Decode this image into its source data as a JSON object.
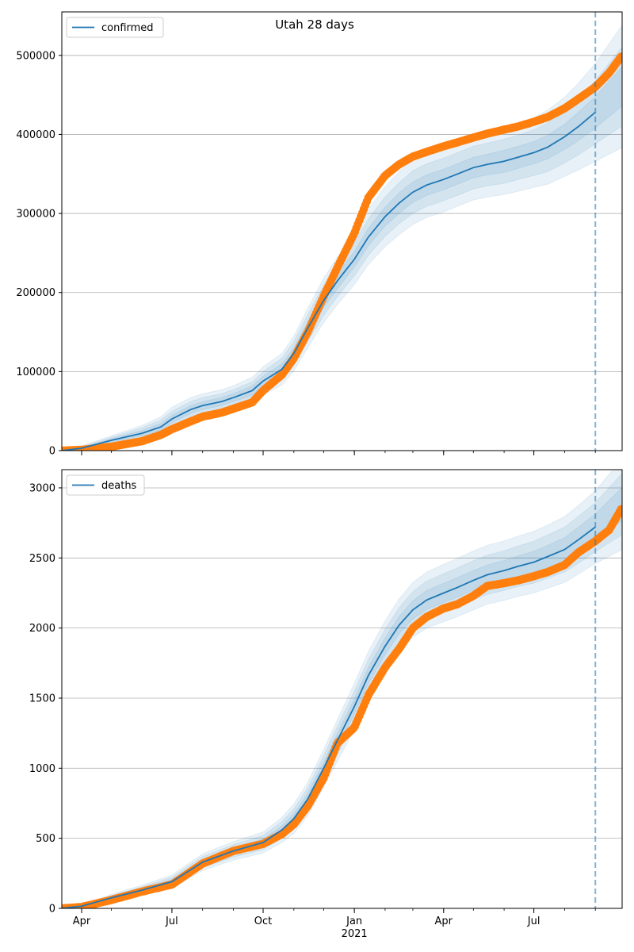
{
  "title": "Utah 28 days",
  "colors": {
    "model": "#1f77b4",
    "observed": "#ff7f0e",
    "band": "#1f77b4",
    "grid": "#b0b0b0",
    "cutoff": "#1f77b4"
  },
  "chart_data": [
    {
      "type": "line",
      "legend": "confirmed",
      "legend_loc": "upper-left",
      "grid": "y",
      "x_range": [
        "2020-03-12",
        "2021-09-28"
      ],
      "ylim": [
        0,
        555000
      ],
      "y_ticks": [
        0,
        100000,
        200000,
        300000,
        400000,
        500000
      ],
      "y_tick_labels": [
        "0",
        "100000",
        "200000",
        "300000",
        "400000",
        "500000"
      ],
      "x_ticks": [
        "2020-04-01",
        "2020-07-01",
        "2020-10-01",
        "2021-01-01",
        "2021-04-01",
        "2021-07-01"
      ],
      "x_tick_labels": [
        "Apr",
        "Jul",
        "Oct",
        "Jan",
        "Apr",
        "Jul"
      ],
      "forecast_start": "2021-09-01",
      "model": {
        "x": [
          "2020-03-12",
          "2020-04-01",
          "2020-05-01",
          "2020-06-01",
          "2020-06-20",
          "2020-07-01",
          "2020-07-20",
          "2020-08-01",
          "2020-08-20",
          "2020-09-01",
          "2020-09-20",
          "2020-10-01",
          "2020-10-20",
          "2020-11-01",
          "2020-11-15",
          "2020-12-01",
          "2020-12-15",
          "2021-01-01",
          "2021-01-15",
          "2021-02-01",
          "2021-02-15",
          "2021-03-01",
          "2021-03-15",
          "2021-04-01",
          "2021-04-15",
          "2021-05-01",
          "2021-05-15",
          "2021-06-01",
          "2021-06-15",
          "2021-07-01",
          "2021-07-15",
          "2021-08-01",
          "2021-08-15",
          "2021-09-01"
        ],
        "y": [
          0,
          3000,
          13000,
          22000,
          30000,
          40000,
          52000,
          57000,
          62000,
          67000,
          76000,
          88000,
          103000,
          123000,
          155000,
          190000,
          215000,
          242000,
          270000,
          296000,
          313000,
          327000,
          336000,
          343000,
          350000,
          358000,
          362000,
          366000,
          371000,
          377000,
          384000,
          397000,
          410000,
          428000
        ]
      },
      "band_widths": [
        [
          0,
          1000,
          2000,
          3500,
          4500,
          5000,
          5000,
          5000,
          5000,
          5000,
          6000,
          6000,
          7000,
          7000,
          8000,
          9000,
          10000,
          10000,
          11000,
          12000,
          13000,
          13000,
          13000,
          13000,
          13000,
          13000,
          13000,
          14000,
          14000,
          14000,
          15000,
          16000,
          18000,
          20000
        ],
        [
          0,
          2000,
          4000,
          7000,
          9000,
          10000,
          10000,
          10000,
          10000,
          10000,
          11000,
          12000,
          14000,
          15000,
          17000,
          19000,
          20000,
          21000,
          23000,
          25000,
          26000,
          27000,
          27000,
          27000,
          27000,
          27000,
          27000,
          28000,
          28000,
          29000,
          31000,
          33000,
          36000,
          40000
        ],
        [
          0,
          3000,
          6000,
          10000,
          13000,
          15000,
          15000,
          15000,
          15000,
          15000,
          17000,
          18000,
          20000,
          22000,
          25000,
          28000,
          30000,
          32000,
          35000,
          38000,
          40000,
          41000,
          41000,
          41000,
          41000,
          41000,
          41000,
          42000,
          43000,
          44000,
          47000,
          50000,
          55000,
          62000
        ]
      ],
      "observed": {
        "x": [
          "2020-03-12",
          "2020-04-01",
          "2020-05-01",
          "2020-06-01",
          "2020-06-20",
          "2020-07-01",
          "2020-07-20",
          "2020-08-01",
          "2020-08-20",
          "2020-09-01",
          "2020-09-20",
          "2020-10-01",
          "2020-10-20",
          "2020-11-01",
          "2020-11-15",
          "2020-12-01",
          "2020-12-15",
          "2021-01-01",
          "2021-01-15",
          "2021-02-01",
          "2021-02-15",
          "2021-03-01",
          "2021-03-15",
          "2021-04-01",
          "2021-04-15",
          "2021-05-01",
          "2021-05-15",
          "2021-06-01",
          "2021-06-15",
          "2021-07-01",
          "2021-07-15",
          "2021-08-01",
          "2021-08-15",
          "2021-09-01",
          "2021-09-15",
          "2021-09-28"
        ],
        "y": [
          0,
          1000,
          5000,
          12000,
          20000,
          27000,
          37000,
          43000,
          48000,
          53000,
          61000,
          76000,
          96000,
          117000,
          150000,
          195000,
          232000,
          275000,
          320000,
          348000,
          362000,
          372000,
          378000,
          385000,
          390000,
          396000,
          401000,
          406000,
          410000,
          416000,
          422000,
          433000,
          445000,
          460000,
          478000,
          500000
        ]
      }
    },
    {
      "type": "line",
      "legend": "deaths",
      "legend_loc": "upper-left",
      "grid": "y",
      "x_range": [
        "2020-03-12",
        "2021-09-28"
      ],
      "ylim": [
        0,
        3130
      ],
      "y_ticks": [
        0,
        500,
        1000,
        1500,
        2000,
        2500,
        3000
      ],
      "y_tick_labels": [
        "0",
        "500",
        "1000",
        "1500",
        "2000",
        "2500",
        "3000"
      ],
      "x_ticks": [
        "2020-04-01",
        "2020-07-01",
        "2020-10-01",
        "2021-01-01",
        "2021-04-01",
        "2021-07-01"
      ],
      "x_tick_labels": [
        "Apr",
        "Jul",
        "Oct",
        "Jan",
        "Apr",
        "Jul"
      ],
      "year_label": "2021",
      "forecast_start": "2021-09-01",
      "model": {
        "x": [
          "2020-03-12",
          "2020-04-01",
          "2020-05-01",
          "2020-06-01",
          "2020-07-01",
          "2020-08-01",
          "2020-09-01",
          "2020-10-01",
          "2020-10-20",
          "2020-11-01",
          "2020-11-15",
          "2020-12-01",
          "2020-12-15",
          "2021-01-01",
          "2021-01-15",
          "2021-02-01",
          "2021-02-15",
          "2021-03-01",
          "2021-03-15",
          "2021-04-01",
          "2021-04-15",
          "2021-05-01",
          "2021-05-15",
          "2021-06-01",
          "2021-06-15",
          "2021-07-01",
          "2021-07-15",
          "2021-08-01",
          "2021-08-15",
          "2021-09-01"
        ],
        "y": [
          0,
          15,
          75,
          130,
          190,
          330,
          410,
          470,
          560,
          640,
          780,
          1000,
          1200,
          1440,
          1660,
          1870,
          2020,
          2130,
          2200,
          2250,
          2290,
          2340,
          2380,
          2410,
          2440,
          2470,
          2510,
          2560,
          2630,
          2720
        ]
      },
      "band_widths": [
        [
          0,
          3,
          8,
          12,
          16,
          20,
          22,
          25,
          30,
          35,
          40,
          45,
          50,
          55,
          58,
          60,
          62,
          65,
          68,
          70,
          70,
          70,
          70,
          72,
          75,
          78,
          80,
          85,
          90,
          95
        ],
        [
          0,
          6,
          16,
          24,
          32,
          40,
          44,
          50,
          60,
          70,
          80,
          90,
          100,
          110,
          115,
          120,
          125,
          130,
          135,
          138,
          140,
          140,
          140,
          142,
          145,
          150,
          155,
          160,
          168,
          175
        ],
        [
          0,
          10,
          25,
          36,
          48,
          60,
          66,
          75,
          90,
          105,
          120,
          135,
          150,
          165,
          172,
          180,
          188,
          195,
          200,
          205,
          208,
          210,
          210,
          212,
          215,
          220,
          225,
          235,
          245,
          260
        ]
      ],
      "observed": {
        "x": [
          "2020-03-12",
          "2020-04-01",
          "2020-05-01",
          "2020-06-01",
          "2020-07-01",
          "2020-08-01",
          "2020-09-01",
          "2020-10-01",
          "2020-10-20",
          "2020-11-01",
          "2020-11-15",
          "2020-12-01",
          "2020-12-15",
          "2021-01-01",
          "2021-01-15",
          "2021-02-01",
          "2021-02-15",
          "2021-03-01",
          "2021-03-15",
          "2021-04-01",
          "2021-04-15",
          "2021-05-01",
          "2021-05-15",
          "2021-06-01",
          "2021-06-15",
          "2021-07-01",
          "2021-07-15",
          "2021-08-01",
          "2021-08-15",
          "2021-09-01",
          "2021-09-15",
          "2021-09-28"
        ],
        "y": [
          0,
          10,
          60,
          120,
          170,
          320,
          410,
          460,
          530,
          600,
          730,
          930,
          1180,
          1290,
          1520,
          1720,
          1850,
          2000,
          2080,
          2140,
          2170,
          2230,
          2300,
          2320,
          2340,
          2370,
          2400,
          2450,
          2540,
          2620,
          2700,
          2860
        ]
      }
    }
  ]
}
